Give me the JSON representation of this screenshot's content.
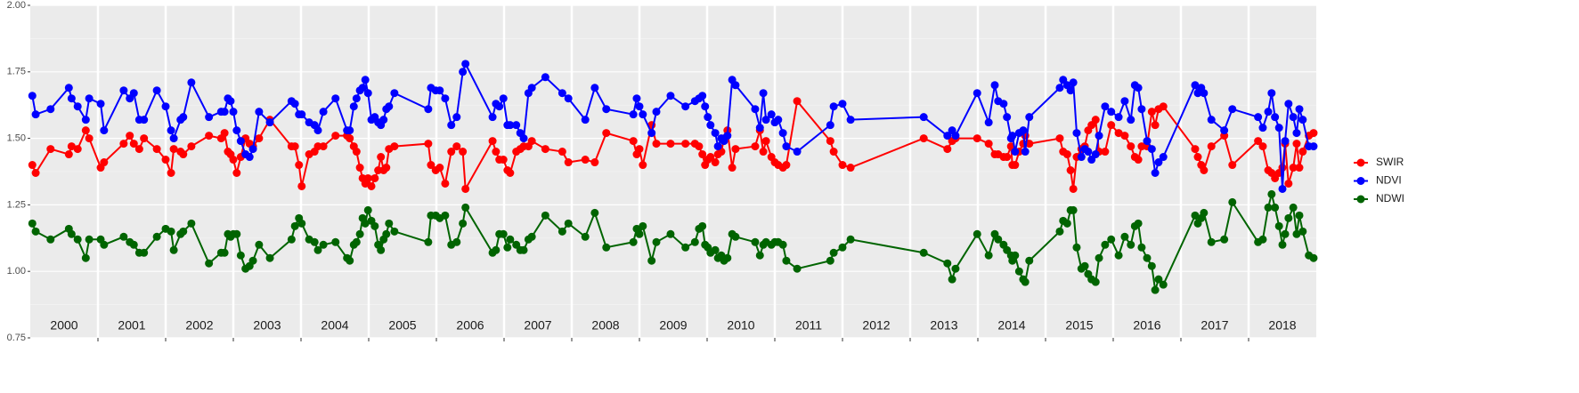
{
  "chart_data": {
    "type": "line",
    "xlim": [
      2000,
      2019
    ],
    "ylim": [
      0.75,
      2.0
    ],
    "xticks": [
      {
        "value": 2000.5,
        "label": "2000"
      },
      {
        "value": 2001.5,
        "label": "2001"
      },
      {
        "value": 2002.5,
        "label": "2002"
      },
      {
        "value": 2003.5,
        "label": "2003"
      },
      {
        "value": 2004.5,
        "label": "2004"
      },
      {
        "value": 2005.5,
        "label": "2005"
      },
      {
        "value": 2006.5,
        "label": "2006"
      },
      {
        "value": 2007.5,
        "label": "2007"
      },
      {
        "value": 2008.5,
        "label": "2008"
      },
      {
        "value": 2009.5,
        "label": "2009"
      },
      {
        "value": 2010.5,
        "label": "2010"
      },
      {
        "value": 2011.5,
        "label": "2011"
      },
      {
        "value": 2012.5,
        "label": "2012"
      },
      {
        "value": 2013.5,
        "label": "2013"
      },
      {
        "value": 2014.5,
        "label": "2014"
      },
      {
        "value": 2015.5,
        "label": "2015"
      },
      {
        "value": 2016.5,
        "label": "2016"
      },
      {
        "value": 2017.5,
        "label": "2017"
      },
      {
        "value": 2018.5,
        "label": "2018"
      }
    ],
    "yticks": [
      0.75,
      {
        "value": 1.0,
        "label": "1.00"
      },
      1.25,
      {
        "value": 1.5,
        "label": "1.50"
      },
      1.75,
      {
        "value": 2.0,
        "label": "2.00"
      }
    ],
    "grid": true,
    "legend": "right",
    "x": [
      2000.03,
      2000.08,
      2000.3,
      2000.57,
      2000.61,
      2000.7,
      2000.82,
      2000.87,
      2001.04,
      2001.09,
      2001.38,
      2001.47,
      2001.53,
      2001.61,
      2001.68,
      2001.87,
      2002.0,
      2002.08,
      2002.12,
      2002.22,
      2002.26,
      2002.38,
      2002.64,
      2002.82,
      2002.87,
      2002.92,
      2002.96,
      2003.0,
      2003.05,
      2003.11,
      2003.18,
      2003.24,
      2003.29,
      2003.38,
      2003.54,
      2003.86,
      2003.91,
      2003.97,
      2004.01,
      2004.12,
      2004.2,
      2004.25,
      2004.33,
      2004.51,
      2004.68,
      2004.72,
      2004.78,
      2004.82,
      2004.87,
      2004.91,
      2004.95,
      2004.99,
      2005.04,
      2005.09,
      2005.14,
      2005.18,
      2005.22,
      2005.26,
      2005.3,
      2005.38,
      2005.88,
      2005.92,
      2005.99,
      2006.05,
      2006.13,
      2006.22,
      2006.3,
      2006.39,
      2006.43,
      2006.83,
      2006.88,
      2006.93,
      2006.99,
      2007.05,
      2007.09,
      2007.18,
      2007.24,
      2007.29,
      2007.36,
      2007.41,
      2007.61,
      2007.86,
      2007.95,
      2008.2,
      2008.34,
      2008.51,
      2008.91,
      2008.96,
      2009.0,
      2009.05,
      2009.18,
      2009.25,
      2009.46,
      2009.68,
      2009.82,
      2009.88,
      2009.93,
      2009.97,
      2010.01,
      2010.05,
      2010.12,
      2010.16,
      2010.21,
      2010.25,
      2010.3,
      2010.37,
      2010.42,
      2010.71,
      2010.78,
      2010.83,
      2010.87,
      2010.95,
      2011.0,
      2011.05,
      2011.12,
      2011.17,
      2011.33,
      2011.82,
      2011.87,
      2012.0,
      2012.12,
      2013.2,
      2013.55,
      2013.62,
      2013.67,
      2013.99,
      2014.16,
      2014.25,
      2014.3,
      2014.38,
      2014.43,
      2014.49,
      2014.51,
      2014.55,
      2014.61,
      2014.67,
      2014.7,
      2014.76,
      2015.21,
      2015.26,
      2015.32,
      2015.37,
      2015.41,
      2015.46,
      2015.53,
      2015.58,
      2015.63,
      2015.68,
      2015.74,
      2015.79,
      2015.88,
      2015.97,
      2016.08,
      2016.17,
      2016.26,
      2016.32,
      2016.37,
      2016.42,
      2016.5,
      2016.57,
      2016.62,
      2016.67,
      2016.74,
      2017.21,
      2017.25,
      2017.3,
      2017.34,
      2017.45,
      2017.64,
      2017.76,
      2018.14,
      2018.21,
      2018.29,
      2018.34,
      2018.39,
      2018.45,
      2018.5,
      2018.54,
      2018.59,
      2018.66,
      2018.71,
      2018.75,
      2018.8,
      2018.89,
      2018.96
    ],
    "series": [
      {
        "name": "SWIR",
        "color": "#ff0000",
        "values": [
          1.4,
          1.37,
          1.46,
          1.44,
          1.47,
          1.46,
          1.53,
          1.5,
          1.39,
          1.41,
          1.48,
          1.51,
          1.48,
          1.46,
          1.5,
          1.46,
          1.42,
          1.37,
          1.46,
          1.45,
          1.44,
          1.47,
          1.51,
          1.5,
          1.52,
          1.45,
          1.44,
          1.42,
          1.37,
          1.43,
          1.5,
          1.48,
          1.47,
          1.5,
          1.57,
          1.47,
          1.47,
          1.4,
          1.32,
          1.44,
          1.45,
          1.47,
          1.47,
          1.51,
          1.51,
          1.5,
          1.47,
          1.45,
          1.39,
          1.35,
          1.33,
          1.35,
          1.32,
          1.35,
          1.38,
          1.43,
          1.38,
          1.39,
          1.46,
          1.47,
          1.48,
          1.4,
          1.38,
          1.39,
          1.33,
          1.45,
          1.47,
          1.45,
          1.31,
          1.49,
          1.45,
          1.42,
          1.42,
          1.38,
          1.37,
          1.45,
          1.46,
          1.47,
          1.47,
          1.49,
          1.46,
          1.45,
          1.41,
          1.42,
          1.41,
          1.52,
          1.49,
          1.44,
          1.46,
          1.4,
          1.55,
          1.48,
          1.48,
          1.48,
          1.48,
          1.47,
          1.44,
          1.4,
          1.42,
          1.43,
          1.41,
          1.44,
          1.45,
          1.5,
          1.53,
          1.39,
          1.46,
          1.47,
          1.53,
          1.45,
          1.49,
          1.43,
          1.41,
          1.4,
          1.39,
          1.4,
          1.64,
          1.49,
          1.45,
          1.4,
          1.39,
          1.5,
          1.46,
          1.49,
          1.5,
          1.5,
          1.48,
          1.44,
          1.44,
          1.43,
          1.43,
          1.47,
          1.4,
          1.4,
          1.45,
          1.48,
          1.51,
          1.48,
          1.5,
          1.45,
          1.44,
          1.38,
          1.31,
          1.43,
          1.46,
          1.47,
          1.53,
          1.55,
          1.57,
          1.45,
          1.45,
          1.55,
          1.52,
          1.51,
          1.47,
          1.43,
          1.42,
          1.47,
          1.47,
          1.6,
          1.55,
          1.61,
          1.62,
          1.46,
          1.43,
          1.4,
          1.38,
          1.47,
          1.51,
          1.4,
          1.49,
          1.47,
          1.38,
          1.37,
          1.35,
          1.37,
          1.39,
          1.48,
          1.33,
          1.39,
          1.48,
          1.39,
          1.45,
          1.51,
          1.52
        ]
      },
      {
        "name": "NDVI",
        "color": "#0000ff",
        "values": [
          1.66,
          1.59,
          1.61,
          1.69,
          1.65,
          1.62,
          1.57,
          1.65,
          1.63,
          1.53,
          1.68,
          1.65,
          1.67,
          1.57,
          1.57,
          1.68,
          1.62,
          1.53,
          1.5,
          1.57,
          1.58,
          1.71,
          1.58,
          1.6,
          1.6,
          1.65,
          1.64,
          1.6,
          1.53,
          1.49,
          1.44,
          1.43,
          1.46,
          1.6,
          1.56,
          1.64,
          1.63,
          1.59,
          1.59,
          1.56,
          1.55,
          1.53,
          1.6,
          1.65,
          1.53,
          1.53,
          1.62,
          1.65,
          1.68,
          1.69,
          1.72,
          1.67,
          1.57,
          1.58,
          1.56,
          1.55,
          1.57,
          1.61,
          1.62,
          1.67,
          1.61,
          1.69,
          1.68,
          1.68,
          1.65,
          1.55,
          1.58,
          1.75,
          1.78,
          1.58,
          1.63,
          1.62,
          1.65,
          1.55,
          1.55,
          1.55,
          1.52,
          1.5,
          1.67,
          1.69,
          1.73,
          1.67,
          1.65,
          1.57,
          1.69,
          1.61,
          1.59,
          1.65,
          1.62,
          1.59,
          1.52,
          1.6,
          1.66,
          1.62,
          1.64,
          1.65,
          1.66,
          1.62,
          1.58,
          1.55,
          1.52,
          1.47,
          1.5,
          1.49,
          1.51,
          1.72,
          1.7,
          1.61,
          1.54,
          1.67,
          1.57,
          1.59,
          1.56,
          1.57,
          1.52,
          1.47,
          1.45,
          1.55,
          1.62,
          1.63,
          1.57,
          1.58,
          1.51,
          1.53,
          1.51,
          1.67,
          1.56,
          1.7,
          1.64,
          1.63,
          1.58,
          1.5,
          1.51,
          1.45,
          1.52,
          1.53,
          1.45,
          1.58,
          1.69,
          1.72,
          1.7,
          1.68,
          1.71,
          1.52,
          1.43,
          1.46,
          1.45,
          1.42,
          1.44,
          1.51,
          1.62,
          1.6,
          1.58,
          1.64,
          1.57,
          1.7,
          1.69,
          1.61,
          1.49,
          1.46,
          1.37,
          1.41,
          1.43,
          1.7,
          1.67,
          1.69,
          1.67,
          1.57,
          1.53,
          1.61,
          1.58,
          1.54,
          1.6,
          1.67,
          1.58,
          1.54,
          1.31,
          1.49,
          1.63,
          1.58,
          1.52,
          1.61,
          1.57,
          1.47,
          1.47
        ]
      },
      {
        "name": "NDWI",
        "color": "#006400",
        "values": [
          1.18,
          1.15,
          1.12,
          1.16,
          1.14,
          1.12,
          1.05,
          1.12,
          1.12,
          1.1,
          1.13,
          1.11,
          1.1,
          1.07,
          1.07,
          1.13,
          1.16,
          1.15,
          1.08,
          1.14,
          1.15,
          1.18,
          1.03,
          1.07,
          1.07,
          1.14,
          1.13,
          1.14,
          1.14,
          1.06,
          1.01,
          1.02,
          1.04,
          1.1,
          1.05,
          1.12,
          1.17,
          1.2,
          1.18,
          1.12,
          1.11,
          1.08,
          1.1,
          1.11,
          1.05,
          1.04,
          1.1,
          1.11,
          1.14,
          1.2,
          1.18,
          1.23,
          1.19,
          1.17,
          1.1,
          1.08,
          1.12,
          1.14,
          1.18,
          1.15,
          1.11,
          1.21,
          1.21,
          1.2,
          1.21,
          1.1,
          1.11,
          1.18,
          1.24,
          1.07,
          1.08,
          1.14,
          1.14,
          1.09,
          1.12,
          1.1,
          1.08,
          1.08,
          1.12,
          1.13,
          1.21,
          1.15,
          1.18,
          1.13,
          1.22,
          1.09,
          1.11,
          1.16,
          1.14,
          1.17,
          1.04,
          1.11,
          1.14,
          1.09,
          1.11,
          1.16,
          1.17,
          1.1,
          1.09,
          1.07,
          1.08,
          1.05,
          1.06,
          1.04,
          1.05,
          1.14,
          1.13,
          1.11,
          1.06,
          1.1,
          1.11,
          1.1,
          1.11,
          1.11,
          1.1,
          1.04,
          1.01,
          1.04,
          1.07,
          1.09,
          1.12,
          1.07,
          1.03,
          0.97,
          1.01,
          1.14,
          1.06,
          1.14,
          1.12,
          1.1,
          1.08,
          1.06,
          1.04,
          1.06,
          1.0,
          0.97,
          0.96,
          1.04,
          1.15,
          1.19,
          1.18,
          1.23,
          1.23,
          1.09,
          1.01,
          1.02,
          0.99,
          0.97,
          0.96,
          1.05,
          1.1,
          1.12,
          1.06,
          1.13,
          1.1,
          1.17,
          1.18,
          1.09,
          1.05,
          1.02,
          0.93,
          0.97,
          0.95,
          1.21,
          1.18,
          1.2,
          1.22,
          1.11,
          1.12,
          1.26,
          1.11,
          1.12,
          1.24,
          1.29,
          1.24,
          1.17,
          1.1,
          1.14,
          1.2,
          1.24,
          1.14,
          1.21,
          1.15,
          1.06,
          1.05
        ]
      }
    ]
  }
}
